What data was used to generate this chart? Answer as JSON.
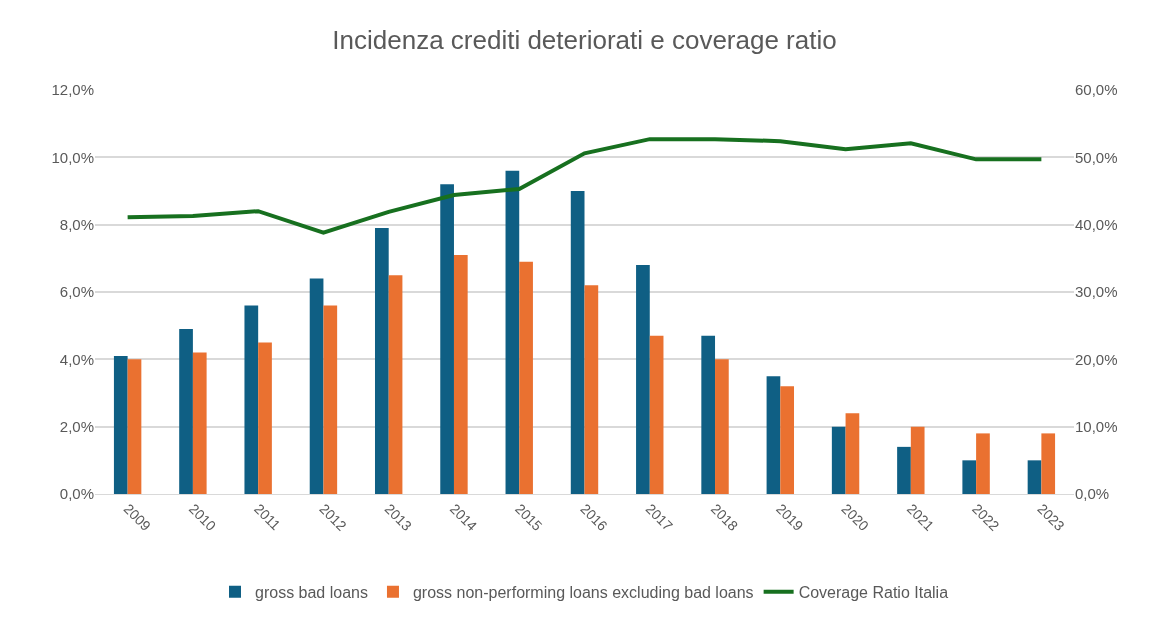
{
  "chart_data": {
    "type": "bar",
    "title": "Incidenza crediti deteriorati e coverage ratio",
    "categories": [
      "2009",
      "2010",
      "2011",
      "2012",
      "2013",
      "2014",
      "2015",
      "2016",
      "2017",
      "2018",
      "2019",
      "2020",
      "2021",
      "2022",
      "2023"
    ],
    "series": [
      {
        "name": "gross bad loans",
        "color": "#0f5f84",
        "values": [
          4.1,
          4.9,
          5.6,
          6.4,
          7.9,
          9.2,
          9.6,
          9.0,
          6.8,
          4.7,
          3.5,
          2.0,
          1.4,
          1.0,
          1.0
        ]
      },
      {
        "name": "gross non-performing loans excluding bad loans",
        "color": "#ea7130",
        "values": [
          4.0,
          4.2,
          4.5,
          5.6,
          6.5,
          7.1,
          6.9,
          6.2,
          4.7,
          4.0,
          3.2,
          2.4,
          2.0,
          1.8,
          1.8
        ]
      },
      {
        "name": "Coverage Ratio Italia",
        "color": "#17701f",
        "type": "line",
        "axis": "y2",
        "values": [
          41.1,
          41.3,
          42.0,
          38.8,
          41.9,
          44.4,
          45.3,
          50.6,
          52.7,
          52.7,
          52.4,
          51.2,
          52.1,
          49.7,
          49.7
        ]
      }
    ],
    "ylim": [
      0,
      12
    ],
    "yticks": [
      {
        "value": 0,
        "label": "0,0%"
      },
      {
        "value": 2,
        "label": "2,0%"
      },
      {
        "value": 4,
        "label": "4,0%"
      },
      {
        "value": 6,
        "label": "6,0%"
      },
      {
        "value": 8,
        "label": "8,0%"
      },
      {
        "value": 10,
        "label": "10,0%"
      },
      {
        "value": 12,
        "label": "12,0%"
      }
    ],
    "y2lim": [
      0,
      60
    ],
    "y2ticks": [
      {
        "value": 0,
        "label": "0,0%"
      },
      {
        "value": 10,
        "label": "10,0%"
      },
      {
        "value": 20,
        "label": "20,0%"
      },
      {
        "value": 30,
        "label": "30,0%"
      },
      {
        "value": 40,
        "label": "40,0%"
      },
      {
        "value": 50,
        "label": "50,0%"
      },
      {
        "value": 60,
        "label": "60,0%"
      }
    ],
    "grid": "y",
    "legend": "bottom",
    "marker": "none",
    "line_style": "solid"
  }
}
